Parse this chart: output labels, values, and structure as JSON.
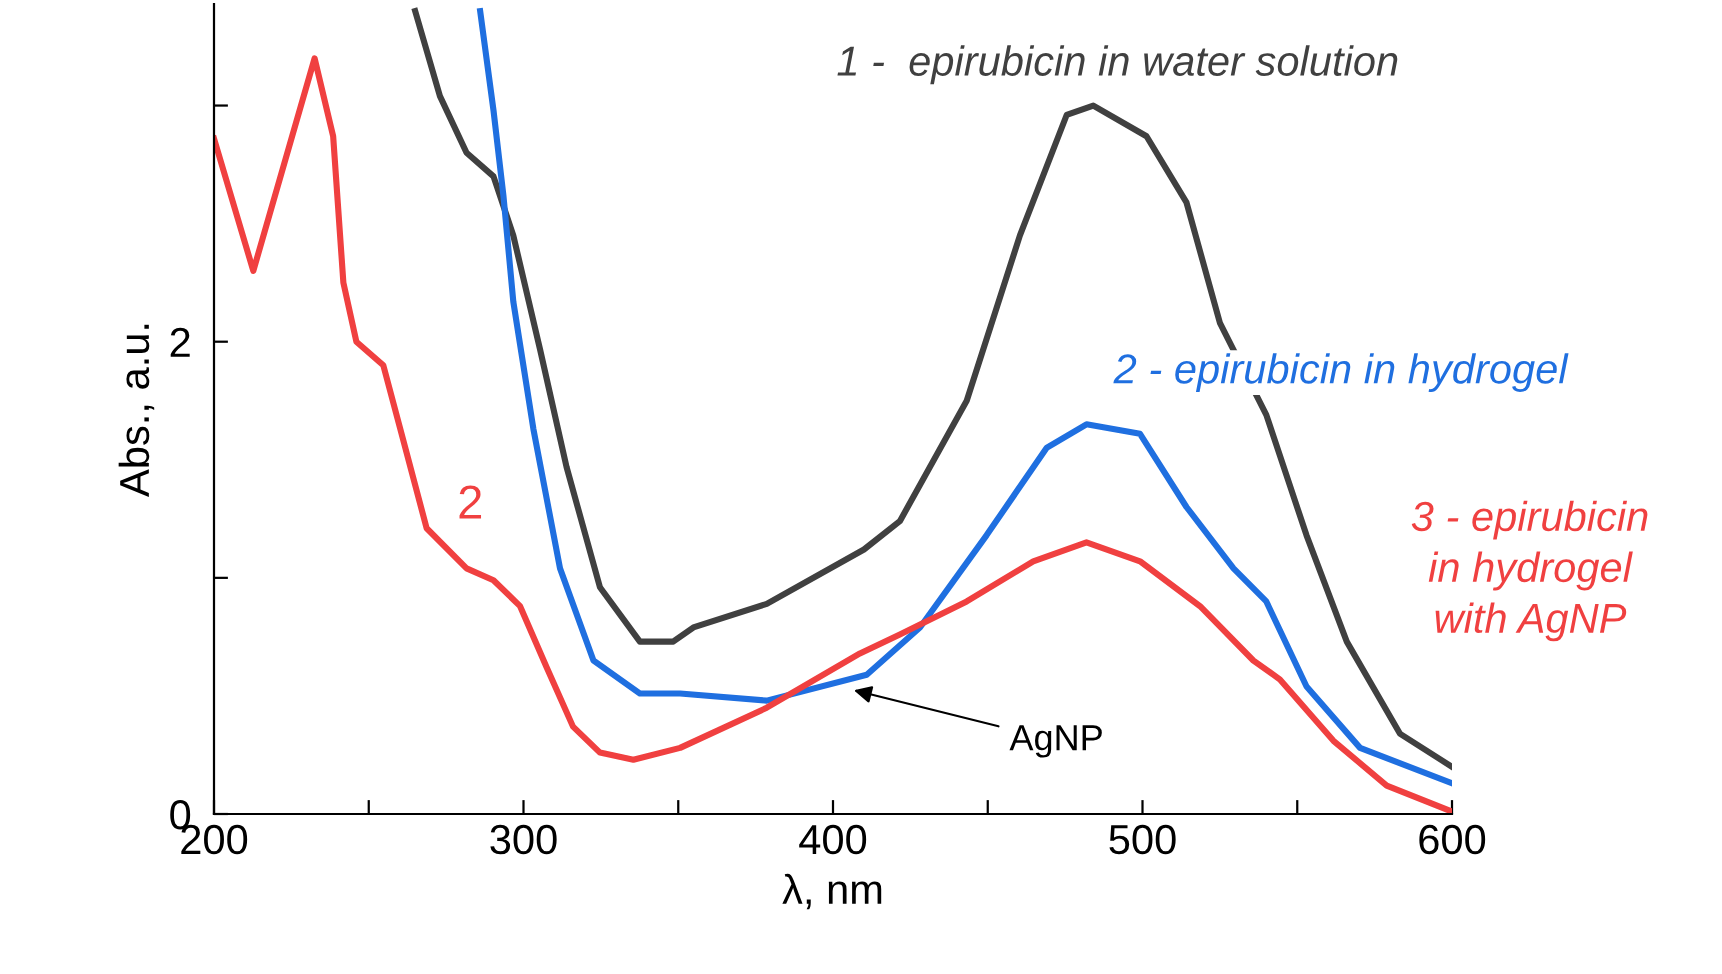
{
  "chart_data": {
    "type": "line",
    "xlabel": "λ, nm",
    "ylabel": "Abs., a.u.",
    "xlim": [
      200,
      600
    ],
    "ylim": [
      0,
      3.43
    ],
    "xticks": [
      200,
      {
        "value": 250,
        "label": null
      },
      300,
      {
        "value": 350,
        "label": null
      },
      400,
      {
        "value": 450,
        "label": null
      },
      500,
      {
        "value": 550,
        "label": null
      },
      600
    ],
    "yticks": [
      0,
      {
        "value": 1,
        "label": null
      },
      2,
      {
        "value": 3,
        "label": null
      }
    ],
    "grid": false,
    "legend": false,
    "marker": "none",
    "line_style": "solid",
    "series": [
      {
        "name": "1 -  epirubicin in water solution",
        "color": "#404040",
        "x": [
          265,
          273,
          281.6,
          290.3,
          296.7,
          305.3,
          313.9,
          324.7,
          337.6,
          348.4,
          354.9,
          378.6,
          410,
          421.6,
          443.2,
          460.4,
          475.5,
          484.1,
          501.3,
          514.2,
          525,
          540,
          553,
          566,
          583.2,
          600
        ],
        "values": [
          3.4,
          3.04,
          2.8,
          2.7,
          2.45,
          1.97,
          1.47,
          0.96,
          0.73,
          0.73,
          0.79,
          0.89,
          1.12,
          1.24,
          1.75,
          2.45,
          2.96,
          3.0,
          2.87,
          2.59,
          2.08,
          1.69,
          1.18,
          0.73,
          0.34,
          0.2
        ]
      },
      {
        "name": "2 - epirubicin in hydrogel",
        "color": "#1f6fe0",
        "x": [
          286,
          290.3,
          293.5,
          296.7,
          303.2,
          311.8,
          322.6,
          337.6,
          350.6,
          378.6,
          410.9,
          428.1,
          449.6,
          469,
          481.9,
          499.2,
          514.2,
          529.4,
          540,
          553,
          570.3,
          600
        ],
        "values": [
          3.4,
          2.98,
          2.62,
          2.17,
          1.63,
          1.04,
          0.65,
          0.51,
          0.51,
          0.48,
          0.59,
          0.79,
          1.18,
          1.55,
          1.65,
          1.61,
          1.3,
          1.04,
          0.9,
          0.54,
          0.28,
          0.13
        ]
      },
      {
        "name": "3 - epirubicin\nin hydrogel\nwith AgNP",
        "color": "#f04040",
        "x": [
          200,
          212.7,
          232.5,
          238.5,
          241.8,
          246,
          254.7,
          260,
          268.7,
          281.6,
          290.3,
          298.9,
          307.5,
          316,
          324.7,
          335.5,
          350.6,
          378.6,
          408.7,
          421.6,
          443.2,
          464.7,
          481.9,
          499.2,
          518.6,
          535.8,
          544.4,
          561.7,
          578.9,
          600
        ],
        "values": [
          2.86,
          2.3,
          3.2,
          2.87,
          2.25,
          2.0,
          1.9,
          1.64,
          1.21,
          1.04,
          0.99,
          0.88,
          0.62,
          0.37,
          0.26,
          0.23,
          0.28,
          0.45,
          0.68,
          0.76,
          0.9,
          1.07,
          1.15,
          1.07,
          0.88,
          0.65,
          0.57,
          0.31,
          0.12,
          0.01
        ]
      }
    ],
    "annotations": [
      "2",
      {
        "text": "AgNP",
        "x": 405,
        "y": 0.53
      }
    ]
  }
}
